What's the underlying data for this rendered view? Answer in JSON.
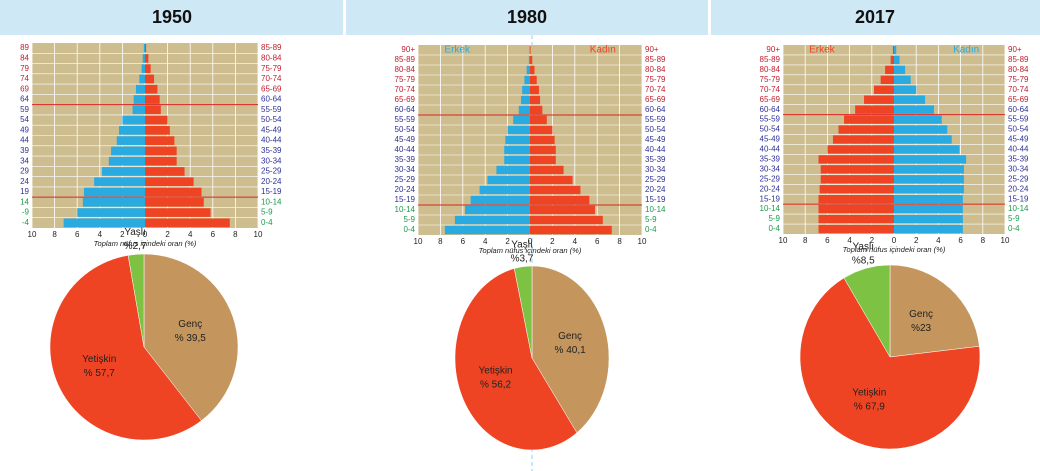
{
  "chart_data": [
    {
      "type": "pyramid",
      "title": "1950",
      "categories": [
        "85-89",
        "80-84",
        "75-79",
        "70-74",
        "65-69",
        "60-64",
        "55-59",
        "50-54",
        "45-49",
        "40-44",
        "35-39",
        "30-34",
        "25-29",
        "20-24",
        "15-19",
        "10-14",
        "5-9",
        "0-4"
      ],
      "left_labels": [
        "89",
        "84",
        "79",
        "74",
        "69",
        "64",
        "59",
        "54",
        "49",
        "44",
        "39",
        "34",
        "29",
        "24",
        "19",
        "14",
        "-9",
        "-4"
      ],
      "series": [
        {
          "side": "left",
          "color": "#29abe2",
          "values": [
            0.1,
            0.2,
            0.3,
            0.5,
            0.8,
            1.0,
            1.1,
            2.0,
            2.3,
            2.5,
            3.0,
            3.2,
            3.8,
            4.5,
            5.4,
            5.5,
            6.0,
            7.2
          ]
        },
        {
          "side": "right",
          "color": "#ef4423",
          "values": [
            0.1,
            0.3,
            0.5,
            0.8,
            1.1,
            1.3,
            1.4,
            2.0,
            2.2,
            2.6,
            2.8,
            2.8,
            3.5,
            4.3,
            5.0,
            5.2,
            5.8,
            7.5
          ]
        }
      ],
      "xlim": [
        0,
        10
      ],
      "xticks": [
        0,
        2,
        4,
        6,
        8,
        10
      ],
      "xlabel": "Toplam nüfus içindeki oran (%)"
    },
    {
      "type": "pie",
      "categories": [
        "Genç",
        "Yetişkin",
        "Yaşlı"
      ],
      "values": [
        39.5,
        57.7,
        2.7
      ],
      "value_labels": [
        "% 39,5",
        "% 57,7",
        "%2,7"
      ],
      "colors": [
        "#c4965e",
        "#ef4423",
        "#7dc242"
      ]
    },
    {
      "type": "pyramid",
      "title": "1980",
      "categories": [
        "90+",
        "85-89",
        "80-84",
        "75-79",
        "70-74",
        "65-69",
        "60-64",
        "55-59",
        "50-54",
        "45-49",
        "40-44",
        "35-39",
        "30-34",
        "25-29",
        "20-24",
        "15-19",
        "10-14",
        "5-9",
        "0-4"
      ],
      "series": [
        {
          "name": "Erkek",
          "side": "left",
          "color": "#29abe2",
          "values": [
            0.05,
            0.1,
            0.3,
            0.5,
            0.7,
            0.8,
            1.0,
            1.5,
            2.0,
            2.2,
            2.3,
            2.3,
            3.0,
            3.8,
            4.5,
            5.3,
            5.8,
            6.7,
            7.6
          ]
        },
        {
          "name": "Kadın",
          "side": "right",
          "color": "#ef4423",
          "values": [
            0.05,
            0.2,
            0.4,
            0.6,
            0.8,
            0.9,
            1.1,
            1.5,
            2.0,
            2.2,
            2.3,
            2.3,
            3.0,
            3.8,
            4.5,
            5.3,
            5.8,
            6.5,
            7.3
          ]
        }
      ],
      "xlim": [
        0,
        10
      ],
      "xticks": [
        0,
        2,
        4,
        6,
        8,
        10
      ],
      "xlabel": "Toplam nüfus içindeki oran (%)"
    },
    {
      "type": "pie",
      "categories": [
        "Genç",
        "Yetişkin",
        "Yaşlı"
      ],
      "values": [
        40.1,
        56.2,
        3.7
      ],
      "value_labels": [
        "% 40,1",
        "% 56,2",
        "%3,7"
      ],
      "colors": [
        "#c4965e",
        "#ef4423",
        "#7dc242"
      ]
    },
    {
      "type": "pyramid",
      "title": "2017",
      "categories": [
        "90+",
        "85-89",
        "80-84",
        "75-79",
        "70-74",
        "65-69",
        "60-64",
        "55-59",
        "50-54",
        "45-49",
        "40-44",
        "35-39",
        "30-34",
        "25-29",
        "20-24",
        "15-19",
        "10-14",
        "5-9",
        "0-4"
      ],
      "series": [
        {
          "name": "Erkek",
          "side": "left",
          "color": "#ef4423",
          "values": [
            0.1,
            0.3,
            0.8,
            1.2,
            1.8,
            2.7,
            3.5,
            4.5,
            5.0,
            5.5,
            6.0,
            6.8,
            6.6,
            6.6,
            6.7,
            6.8,
            6.8,
            6.8,
            6.8
          ]
        },
        {
          "name": "Kadın",
          "side": "right",
          "color": "#29abe2",
          "values": [
            0.2,
            0.5,
            1.0,
            1.5,
            2.0,
            2.8,
            3.6,
            4.3,
            4.8,
            5.2,
            5.9,
            6.5,
            6.3,
            6.3,
            6.3,
            6.2,
            6.2,
            6.2,
            6.2
          ]
        }
      ],
      "xlim": [
        0,
        10
      ],
      "xticks": [
        0,
        2,
        4,
        6,
        8,
        10
      ],
      "xlabel": "Toplam nüfus içindeki oran (%)"
    },
    {
      "type": "pie",
      "categories": [
        "Genç",
        "Yetişkin",
        "Yaşlı"
      ],
      "values": [
        23,
        67.9,
        8.5
      ],
      "value_labels": [
        "%23",
        "% 67,9",
        "%8,5"
      ],
      "colors": [
        "#c4965e",
        "#ef4423",
        "#7dc242"
      ]
    }
  ]
}
